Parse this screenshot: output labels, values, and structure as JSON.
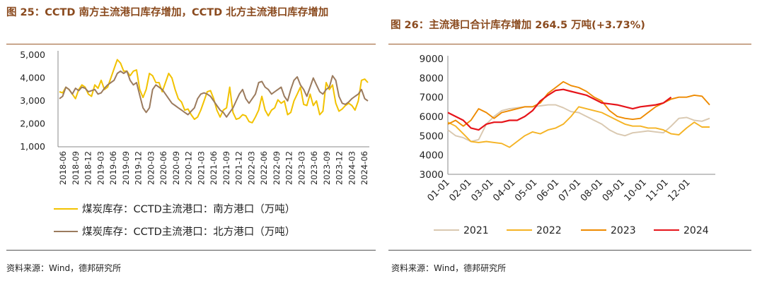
{
  "left_figure": {
    "title": "图 25：CCTD 南方主流港口库存增加，CCTD 北方主流港口库存增加",
    "source": "资料来源：Wind，德邦研究所"
  },
  "right_figure": {
    "title": "图 26：主流港口合计库存增加 264.5 万吨(+3.73%)",
    "source": "资料来源：Wind，德邦研究所"
  },
  "colors": {
    "south": "#f2c200",
    "north": "#9b7b5e",
    "y2021": "#d9c8b0",
    "y2022": "#f5b324",
    "y2023": "#ee8a00",
    "y2024": "#e6141a",
    "title": "#8a4a1e"
  },
  "chart_data": [
    {
      "type": "line",
      "title": "",
      "xlabel": "",
      "ylabel": "",
      "ylim": [
        1000,
        5000
      ],
      "y_ticks": [
        "1,000",
        "2,000",
        "3,000",
        "4,000",
        "5,000"
      ],
      "x_ticks": [
        "2018-06",
        "2018-09",
        "2018-12",
        "2019-03",
        "2019-06",
        "2019-09",
        "2019-12",
        "2020-03",
        "2020-06",
        "2020-09",
        "2020-12",
        "2021-03",
        "2021-06",
        "2021-09",
        "2021-12",
        "2022-03",
        "2022-06",
        "2022-09",
        "2022-12",
        "2023-03",
        "2023-06",
        "2023-09",
        "2023-12",
        "2024-03",
        "2024-06"
      ],
      "legend_position": "bottom",
      "series": [
        {
          "name": "煤炭库存：CCTD主流港口：南方港口（万吨）",
          "values": [
            3400,
            3350,
            3600,
            3500,
            3300,
            3100,
            3500,
            3700,
            3600,
            3300,
            3200,
            3700,
            3550,
            3900,
            3500,
            3600,
            4000,
            4400,
            4800,
            4650,
            4300,
            4300,
            4100,
            4300,
            4350,
            3500,
            3150,
            3500,
            4200,
            4100,
            3800,
            3800,
            3400,
            3800,
            4200,
            4000,
            3500,
            3100,
            2950,
            2600,
            2650,
            2400,
            2200,
            2300,
            2600,
            3000,
            3400,
            3450,
            3100,
            2600,
            2300,
            2600,
            2700,
            3600,
            2500,
            2200,
            2250,
            2400,
            2350,
            2100,
            2050,
            2300,
            2600,
            3200,
            2600,
            2350,
            2600,
            2700,
            3050,
            2900,
            3000,
            2400,
            2500,
            3000,
            3300,
            3600,
            2850,
            2800,
            3300,
            2800,
            3000,
            2400,
            2550,
            3800,
            3500,
            3700,
            2900,
            2550,
            2650,
            2800,
            2900,
            2800,
            2600,
            3000,
            3900,
            3950,
            3800
          ]
        },
        {
          "name": "煤炭库存：CCTD主流港口：北方港口（万吨）",
          "values": [
            3100,
            3200,
            3600,
            3500,
            3300,
            3550,
            3450,
            3600,
            3550,
            3400,
            3450,
            3500,
            3300,
            3350,
            3550,
            3700,
            3800,
            3900,
            4200,
            4300,
            4200,
            4300,
            3900,
            3700,
            3800,
            3250,
            2700,
            2500,
            2700,
            3500,
            3700,
            3600,
            3500,
            3300,
            3100,
            2900,
            2800,
            2700,
            2600,
            2500,
            2400,
            2550,
            2700,
            3100,
            3300,
            3350,
            3300,
            3200,
            3000,
            2800,
            2600,
            2500,
            2300,
            2500,
            2700,
            3000,
            3300,
            3500,
            3100,
            2900,
            3100,
            3300,
            3800,
            3850,
            3600,
            3500,
            3300,
            3400,
            3500,
            3600,
            3200,
            3000,
            3500,
            3900,
            4050,
            3700,
            3500,
            3200,
            3600,
            4000,
            3700,
            3400,
            3300,
            3500,
            3600,
            4100,
            3900,
            3200,
            2900,
            2850,
            2950,
            3100,
            3200,
            3300,
            3500,
            3100,
            3000
          ]
        }
      ]
    },
    {
      "type": "line",
      "title": "",
      "xlabel": "",
      "ylabel": "",
      "ylim": [
        3000,
        9000
      ],
      "y_ticks": [
        "9000",
        "8000",
        "7000",
        "6000",
        "5000",
        "4000",
        "3000"
      ],
      "x_ticks": [
        "01-01",
        "02-01",
        "03-01",
        "04-01",
        "05-01",
        "06-01",
        "07-01",
        "08-01",
        "09-01",
        "10-01",
        "11-01",
        "12-01"
      ],
      "legend_position": "bottom",
      "series": [
        {
          "name": "2021",
          "values": [
            5300,
            5000,
            4900,
            4700,
            4800,
            5600,
            6000,
            6300,
            6400,
            6450,
            6500,
            6500,
            6550,
            6600,
            6600,
            6450,
            6250,
            6200,
            6000,
            5800,
            5600,
            5300,
            5100,
            5000,
            5150,
            5200,
            5250,
            5200,
            5150,
            5500,
            5900,
            5950,
            5800,
            5750,
            5900
          ]
        },
        {
          "name": "2022",
          "values": [
            5700,
            5500,
            5100,
            4700,
            4650,
            4700,
            4650,
            4600,
            4400,
            4700,
            5000,
            5200,
            5100,
            5300,
            5400,
            5600,
            6000,
            6500,
            6400,
            6300,
            6200,
            6000,
            5800,
            5600,
            5500,
            5500,
            5400,
            5400,
            5300,
            5100,
            5050,
            5400,
            5700,
            5450,
            5450
          ]
        },
        {
          "name": "2023",
          "values": [
            5600,
            5800,
            5500,
            5800,
            6400,
            6200,
            5900,
            6200,
            6300,
            6400,
            6500,
            6500,
            6700,
            7200,
            7500,
            7800,
            7600,
            7500,
            7300,
            7000,
            6800,
            6300,
            6000,
            5900,
            5850,
            5900,
            6200,
            6500,
            6700,
            6900,
            7000,
            7000,
            7100,
            7050,
            6600
          ]
        },
        {
          "name": "2024",
          "values": [
            6200,
            6000,
            5800,
            5400,
            5300,
            5600,
            5700,
            5700,
            5800,
            5800,
            6000,
            6300,
            6800,
            7100,
            7350,
            7400,
            7300,
            7200,
            7100,
            6900,
            6700,
            6650,
            6600,
            6500,
            6400,
            6500,
            6550,
            6600,
            6700,
            7000
          ]
        }
      ]
    }
  ]
}
